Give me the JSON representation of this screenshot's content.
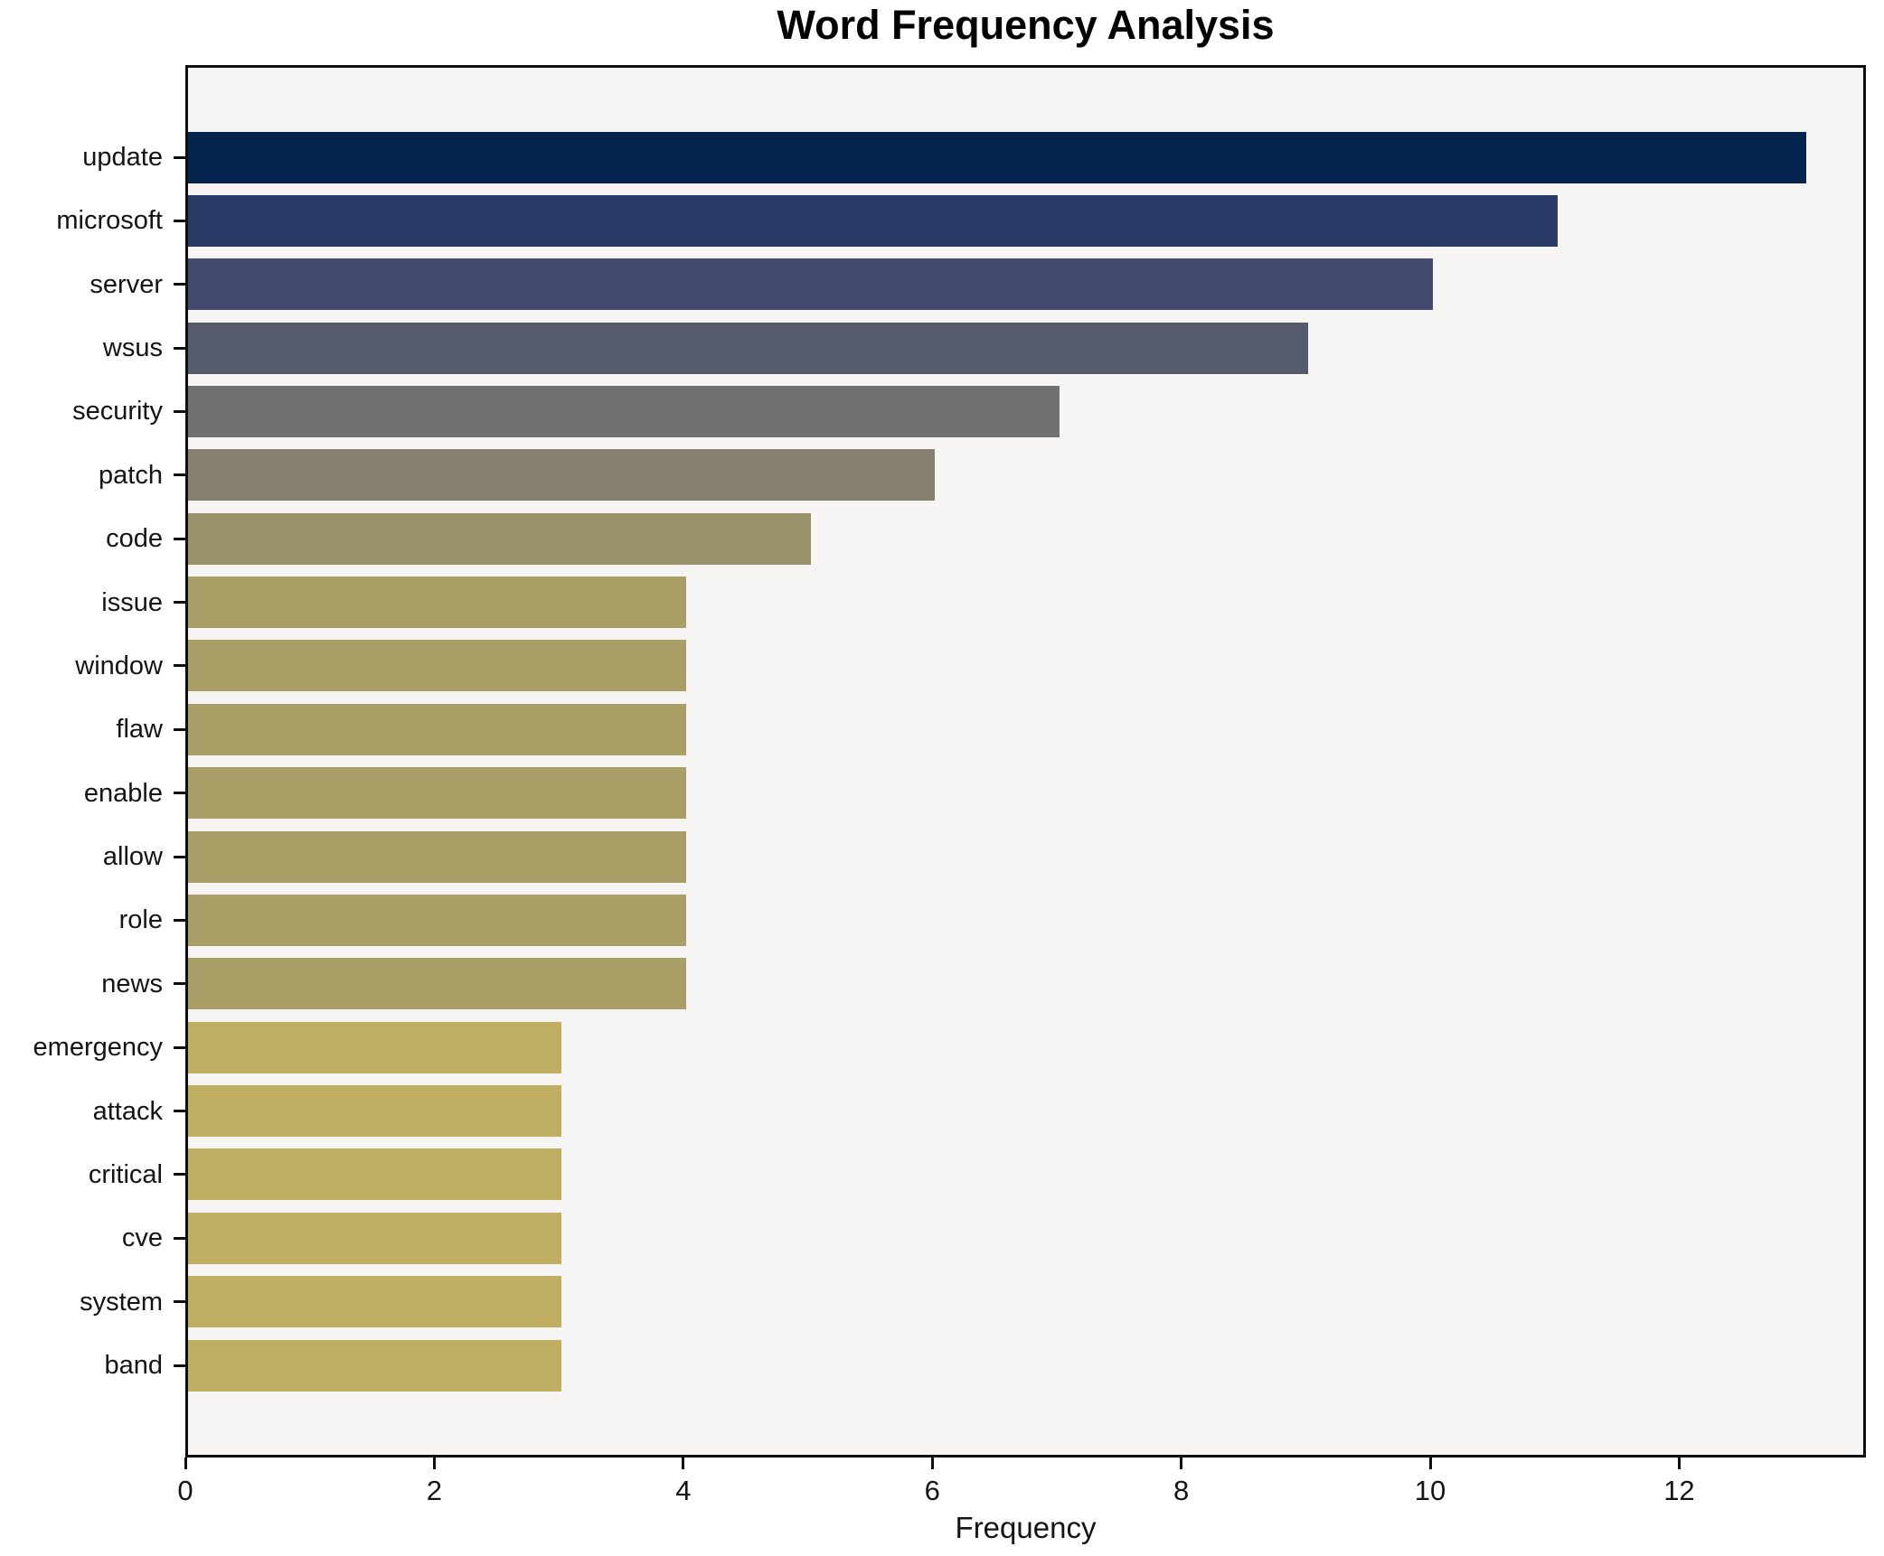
{
  "chart_data": {
    "type": "bar",
    "orientation": "horizontal",
    "title": "Word Frequency Analysis",
    "xlabel": "Frequency",
    "ylabel": "",
    "categories": [
      "update",
      "microsoft",
      "server",
      "wsus",
      "security",
      "patch",
      "code",
      "issue",
      "window",
      "flaw",
      "enable",
      "allow",
      "role",
      "news",
      "emergency",
      "attack",
      "critical",
      "cve",
      "system",
      "band"
    ],
    "values": [
      13,
      11,
      10,
      9,
      7,
      6,
      5,
      4,
      4,
      4,
      4,
      4,
      4,
      4,
      3,
      3,
      3,
      3,
      3,
      3
    ],
    "bar_colors": [
      "#04234f",
      "#2a3b67",
      "#424b6e",
      "#565b6c",
      "#707173",
      "#868070",
      "#99926b",
      "#aa9f66",
      "#aa9f66",
      "#aa9f66",
      "#aa9f66",
      "#aa9f66",
      "#aa9f66",
      "#aa9f66",
      "#c0ae63",
      "#c0ae63",
      "#c0ae63",
      "#c0ae63",
      "#c0ae63",
      "#c0ae63"
    ],
    "xticks": [
      0,
      2,
      4,
      6,
      8,
      10,
      12
    ],
    "xlim": [
      0,
      13.5
    ],
    "grid": false,
    "legend_position": "none",
    "plot_background": "#f6f5f3",
    "figure_background": "#ffffff",
    "spine_color": "#0e0e0e",
    "text_color": "#141414"
  }
}
